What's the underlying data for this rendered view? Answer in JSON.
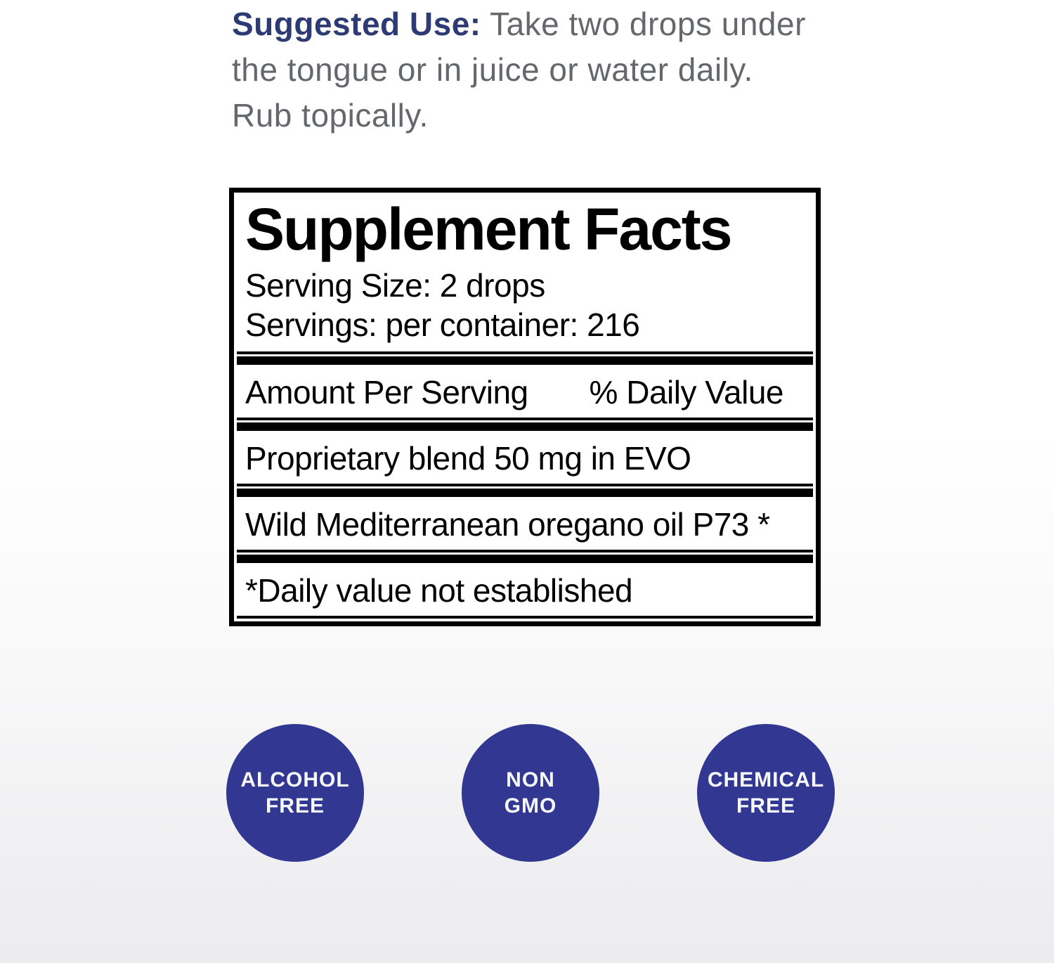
{
  "colors": {
    "suggested_label_navy": "#2d3a73",
    "suggested_text_gray": "#64676c",
    "facts_border_black": "#000000",
    "badge_blue": "#323891",
    "badge_text": "#f7f8fc",
    "background_top": "#ffffff",
    "background_bottom": "#ececee"
  },
  "suggested_use": {
    "label": "Suggested Use:",
    "lines": [
      "Take two drops under",
      "the tongue or in juice or water daily.",
      "Rub topically."
    ]
  },
  "supplement_facts": {
    "title": "Supplement Facts",
    "serving_size": "Serving Size: 2 drops",
    "servings_per_container": "Servings: per container: 216",
    "columns": {
      "amount": "Amount Per Serving",
      "daily_value": "% Daily Value"
    },
    "rows": [
      "Proprietary blend 50 mg in EVO",
      "Wild Mediterranean oregano oil P73 *"
    ],
    "footnote": "*Daily value not established"
  },
  "badges": {
    "items": [
      {
        "line1": "ALCOHOL",
        "line2": "FREE"
      },
      {
        "line1": "NON",
        "line2": "GMO"
      },
      {
        "line1": "CHEMICAL",
        "line2": "FREE"
      }
    ]
  }
}
